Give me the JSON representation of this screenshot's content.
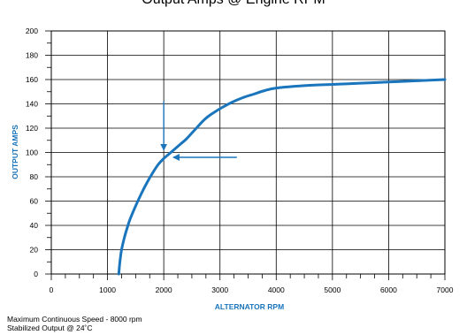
{
  "chart_data": {
    "type": "line",
    "title": "Output Amps @ Engine RPM",
    "xlabel": "ALTERNATOR RPM",
    "ylabel": "OUTPUT AMPS",
    "xlim": [
      0,
      7000
    ],
    "ylim": [
      0,
      200
    ],
    "x_ticks": [
      "0",
      "1000",
      "2000",
      "3000",
      "4000",
      "5000",
      "6000",
      "7000"
    ],
    "y_ticks": [
      "0",
      "20",
      "40",
      "60",
      "80",
      "100",
      "120",
      "140",
      "160",
      "180",
      "200"
    ],
    "grid": true,
    "series": [
      {
        "color": "#1a75bc",
        "x": [
          1200,
          1220,
          1250,
          1300,
          1350,
          1400,
          1500,
          1600,
          1700,
          1800,
          1900,
          2000,
          2100,
          2200,
          2300,
          2400,
          2500,
          2600,
          2700,
          2800,
          3000,
          3200,
          3400,
          3600,
          3800,
          4000,
          4500,
          5000,
          5500,
          6000,
          6500,
          7000
        ],
        "y": [
          0,
          10,
          20,
          30,
          38,
          45,
          56,
          66,
          75,
          83,
          90,
          95,
          99,
          103,
          107,
          111,
          116,
          121,
          126,
          130,
          136,
          141,
          145,
          148,
          151,
          153,
          155,
          156,
          157,
          158,
          159,
          160
        ]
      }
    ],
    "annotations": [
      {
        "type": "arrow",
        "from": [
          2000,
          142
        ],
        "to": [
          2000,
          102
        ],
        "color": "#1a75bc"
      },
      {
        "type": "arrow",
        "from": [
          3300,
          96
        ],
        "to": [
          2170,
          96
        ],
        "color": "#1a75bc"
      }
    ]
  },
  "notes": {
    "line1": "Maximum Continuous Speed - 8000 rpm",
    "line2": "Stabilized Output @ 24˚C"
  },
  "colors": {
    "curve": "#1a75bc",
    "axis_label": "#1a75bc",
    "grid": "#000000"
  }
}
